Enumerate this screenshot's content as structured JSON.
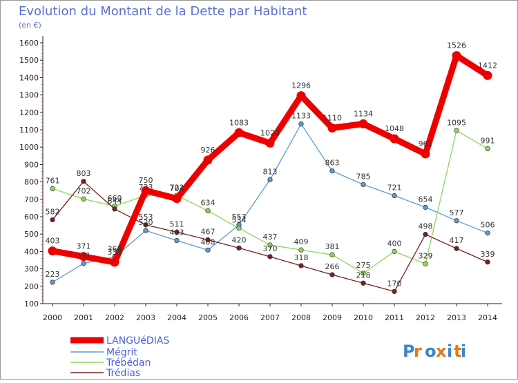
{
  "chart_data": {
    "type": "line",
    "title": "Evolution du Montant de la Dette par Habitant",
    "subtitle": "(en €)",
    "categories": [
      "2000",
      "2001",
      "2002",
      "2003",
      "2004",
      "2005",
      "2006",
      "2007",
      "2008",
      "2009",
      "2010",
      "2011",
      "2012",
      "2013",
      "2014"
    ],
    "y_ticks": [
      100,
      200,
      300,
      400,
      500,
      600,
      700,
      800,
      900,
      1000,
      1100,
      1200,
      1300,
      1400,
      1500,
      1600
    ],
    "ylim": [
      100,
      1600
    ],
    "grid": false,
    "legend_position": "bottom-left",
    "series": [
      {
        "name": "LANGUéDIAS",
        "color": "#ee0000",
        "values": [
          403,
          371,
          338,
          750,
          704,
          926,
          1083,
          1023,
          1296,
          1110,
          1134,
          1048,
          961,
          1526,
          1412
        ]
      },
      {
        "name": "Mégrit",
        "color": "#5b9bd5",
        "values": [
          223,
          331,
          368,
          520,
          463,
          408,
          553,
          813,
          1133,
          863,
          785,
          721,
          654,
          577,
          506
        ]
      },
      {
        "name": "Trébédan",
        "color": "#8ed65b",
        "values": [
          761,
          702,
          660,
          723,
          722,
          634,
          534,
          437,
          409,
          381,
          275,
          400,
          329,
          1095,
          991
        ]
      },
      {
        "name": "Trédias",
        "color": "#7a1f1f",
        "values": [
          582,
          803,
          644,
          553,
          511,
          467,
          420,
          370,
          318,
          266,
          218,
          170,
          498,
          417,
          339
        ]
      }
    ]
  },
  "logo": {
    "text": "Proxiti"
  }
}
